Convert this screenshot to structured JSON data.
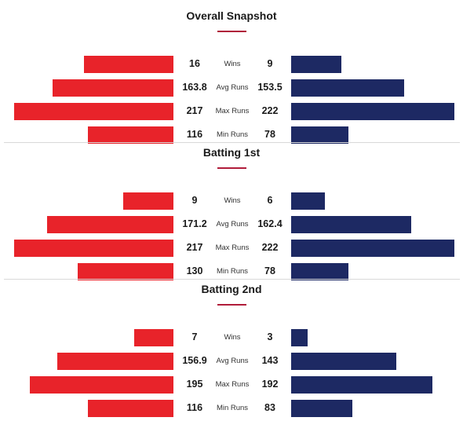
{
  "colors": {
    "left_team": "#e8232a",
    "right_team": "#1d2963",
    "accent": "#b01c3a",
    "divider": "#d9d9d9"
  },
  "chart_data": {
    "type": "bar",
    "orientation": "diverging-horizontal",
    "grid": false,
    "sections": [
      {
        "title": "Overall Snapshot",
        "rows": [
          {
            "label": "Wins",
            "left": 16,
            "left_text": "16",
            "right": 9,
            "right_text": "9"
          },
          {
            "label": "Avg Runs",
            "left": 163.8,
            "left_text": "163.8",
            "right": 153.5,
            "right_text": "153.5"
          },
          {
            "label": "Max Runs",
            "left": 217,
            "left_text": "217",
            "right": 222,
            "right_text": "222"
          },
          {
            "label": "Min Runs",
            "left": 116,
            "left_text": "116",
            "right": 78,
            "right_text": "78"
          }
        ]
      },
      {
        "title": "Batting 1st",
        "rows": [
          {
            "label": "Wins",
            "left": 9,
            "left_text": "9",
            "right": 6,
            "right_text": "6"
          },
          {
            "label": "Avg Runs",
            "left": 171.2,
            "left_text": "171.2",
            "right": 162.4,
            "right_text": "162.4"
          },
          {
            "label": "Max Runs",
            "left": 217,
            "left_text": "217",
            "right": 222,
            "right_text": "222"
          },
          {
            "label": "Min Runs",
            "left": 130,
            "left_text": "130",
            "right": 78,
            "right_text": "78"
          }
        ]
      },
      {
        "title": "Batting 2nd",
        "rows": [
          {
            "label": "Wins",
            "left": 7,
            "left_text": "7",
            "right": 3,
            "right_text": "3"
          },
          {
            "label": "Avg Runs",
            "left": 156.9,
            "left_text": "156.9",
            "right": 143,
            "right_text": "143"
          },
          {
            "label": "Max Runs",
            "left": 195,
            "left_text": "195",
            "right": 192,
            "right_text": "192"
          },
          {
            "label": "Min Runs",
            "left": 116,
            "left_text": "116",
            "right": 83,
            "right_text": "83"
          }
        ]
      }
    ]
  }
}
